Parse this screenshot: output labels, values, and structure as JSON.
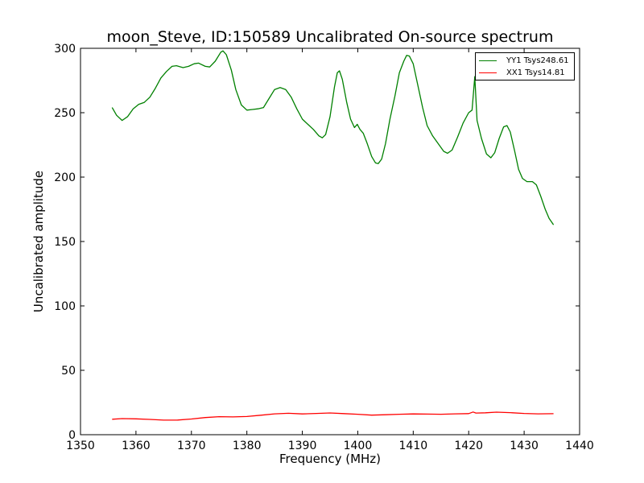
{
  "chart_data": {
    "type": "line",
    "title": "moon_Steve, ID:150589 Uncalibrated On-source spectrum",
    "xlabel": "Frequency (MHz)",
    "ylabel": "Uncalibrated amplitude",
    "xlim": [
      1350,
      1440
    ],
    "ylim": [
      0,
      300
    ],
    "xticks": [
      1350,
      1360,
      1370,
      1380,
      1390,
      1400,
      1410,
      1420,
      1430,
      1440
    ],
    "yticks": [
      0,
      50,
      100,
      150,
      200,
      250,
      300
    ],
    "grid": false,
    "legend_position": "top-right",
    "series": [
      {
        "name": "YY1 Tsys248.61",
        "color": "#008000",
        "points": [
          [
            1355.7,
            254
          ],
          [
            1356.5,
            248
          ],
          [
            1357.5,
            244
          ],
          [
            1358.5,
            247
          ],
          [
            1359.5,
            253
          ],
          [
            1360.5,
            256.5
          ],
          [
            1361.5,
            258
          ],
          [
            1362.5,
            262
          ],
          [
            1363.5,
            269
          ],
          [
            1364.5,
            277
          ],
          [
            1365.5,
            282
          ],
          [
            1366.5,
            286
          ],
          [
            1367.3,
            286.5
          ],
          [
            1368.5,
            285
          ],
          [
            1369.5,
            286
          ],
          [
            1370.5,
            288
          ],
          [
            1371.3,
            288.5
          ],
          [
            1372.5,
            286
          ],
          [
            1373.3,
            285.5
          ],
          [
            1374.3,
            290
          ],
          [
            1375.3,
            297
          ],
          [
            1375.7,
            298
          ],
          [
            1376.3,
            295
          ],
          [
            1377.2,
            283
          ],
          [
            1378.0,
            268
          ],
          [
            1379.0,
            256
          ],
          [
            1380.0,
            252
          ],
          [
            1381.0,
            252.5
          ],
          [
            1382.0,
            253
          ],
          [
            1383.0,
            254
          ],
          [
            1384.0,
            261
          ],
          [
            1385.0,
            268
          ],
          [
            1386.0,
            269.5
          ],
          [
            1387.0,
            268
          ],
          [
            1388.0,
            262
          ],
          [
            1389.0,
            253
          ],
          [
            1390.0,
            245
          ],
          [
            1391.0,
            241
          ],
          [
            1392.0,
            237
          ],
          [
            1393.0,
            232
          ],
          [
            1393.6,
            230.5
          ],
          [
            1394.2,
            233
          ],
          [
            1395.0,
            247
          ],
          [
            1395.8,
            270
          ],
          [
            1396.3,
            281
          ],
          [
            1396.7,
            282.5
          ],
          [
            1397.2,
            276
          ],
          [
            1398.0,
            258
          ],
          [
            1398.7,
            245
          ],
          [
            1399.4,
            238.5
          ],
          [
            1399.9,
            241
          ],
          [
            1400.4,
            237
          ],
          [
            1401.0,
            234
          ],
          [
            1401.7,
            226
          ],
          [
            1402.5,
            216
          ],
          [
            1403.2,
            211
          ],
          [
            1403.7,
            210.5
          ],
          [
            1404.3,
            214
          ],
          [
            1405.0,
            226
          ],
          [
            1405.8,
            245
          ],
          [
            1406.7,
            263
          ],
          [
            1407.5,
            281
          ],
          [
            1408.3,
            290
          ],
          [
            1408.8,
            294.5
          ],
          [
            1409.3,
            294
          ],
          [
            1410.0,
            288
          ],
          [
            1410.8,
            272
          ],
          [
            1411.7,
            254
          ],
          [
            1412.5,
            240
          ],
          [
            1413.5,
            232
          ],
          [
            1414.5,
            226
          ],
          [
            1415.5,
            220
          ],
          [
            1416.2,
            218.5
          ],
          [
            1417.0,
            221
          ],
          [
            1418.0,
            231
          ],
          [
            1419.0,
            242
          ],
          [
            1420.0,
            250
          ],
          [
            1420.6,
            252
          ],
          [
            1421.1,
            278
          ],
          [
            1421.5,
            244
          ],
          [
            1422.3,
            230
          ],
          [
            1423.2,
            218
          ],
          [
            1424.0,
            215
          ],
          [
            1424.7,
            219
          ],
          [
            1425.5,
            230
          ],
          [
            1426.3,
            239
          ],
          [
            1426.9,
            240
          ],
          [
            1427.5,
            235
          ],
          [
            1428.3,
            220
          ],
          [
            1429.0,
            206
          ],
          [
            1429.7,
            199
          ],
          [
            1430.5,
            196.5
          ],
          [
            1431.5,
            196.5
          ],
          [
            1432.2,
            194
          ],
          [
            1433.0,
            185
          ],
          [
            1433.8,
            175
          ],
          [
            1434.5,
            168
          ],
          [
            1435.3,
            163
          ]
        ]
      },
      {
        "name": "XX1 Tsys14.81",
        "color": "#ff0000",
        "points": [
          [
            1355.7,
            12
          ],
          [
            1357.5,
            12.5
          ],
          [
            1360,
            12.3
          ],
          [
            1362.5,
            11.9
          ],
          [
            1365,
            11.3
          ],
          [
            1367.5,
            11.4
          ],
          [
            1370,
            12.2
          ],
          [
            1372.5,
            13.3
          ],
          [
            1375,
            14
          ],
          [
            1377.5,
            13.8
          ],
          [
            1380,
            14.1
          ],
          [
            1382.5,
            15.1
          ],
          [
            1385,
            16.2
          ],
          [
            1387.5,
            16.6
          ],
          [
            1390,
            16.1
          ],
          [
            1392.5,
            16.5
          ],
          [
            1395,
            16.9
          ],
          [
            1397.5,
            16.4
          ],
          [
            1400,
            15.9
          ],
          [
            1402.5,
            15.2
          ],
          [
            1405,
            15.5
          ],
          [
            1407.5,
            15.9
          ],
          [
            1410,
            16.1
          ],
          [
            1412.5,
            16
          ],
          [
            1415,
            15.9
          ],
          [
            1417.5,
            16.2
          ],
          [
            1420,
            16.4
          ],
          [
            1420.8,
            17.6
          ],
          [
            1421.3,
            16.8
          ],
          [
            1423,
            17
          ],
          [
            1425,
            17.5
          ],
          [
            1427.5,
            17.1
          ],
          [
            1430,
            16.5
          ],
          [
            1432.5,
            16.2
          ],
          [
            1435.3,
            16.3
          ]
        ]
      }
    ]
  }
}
